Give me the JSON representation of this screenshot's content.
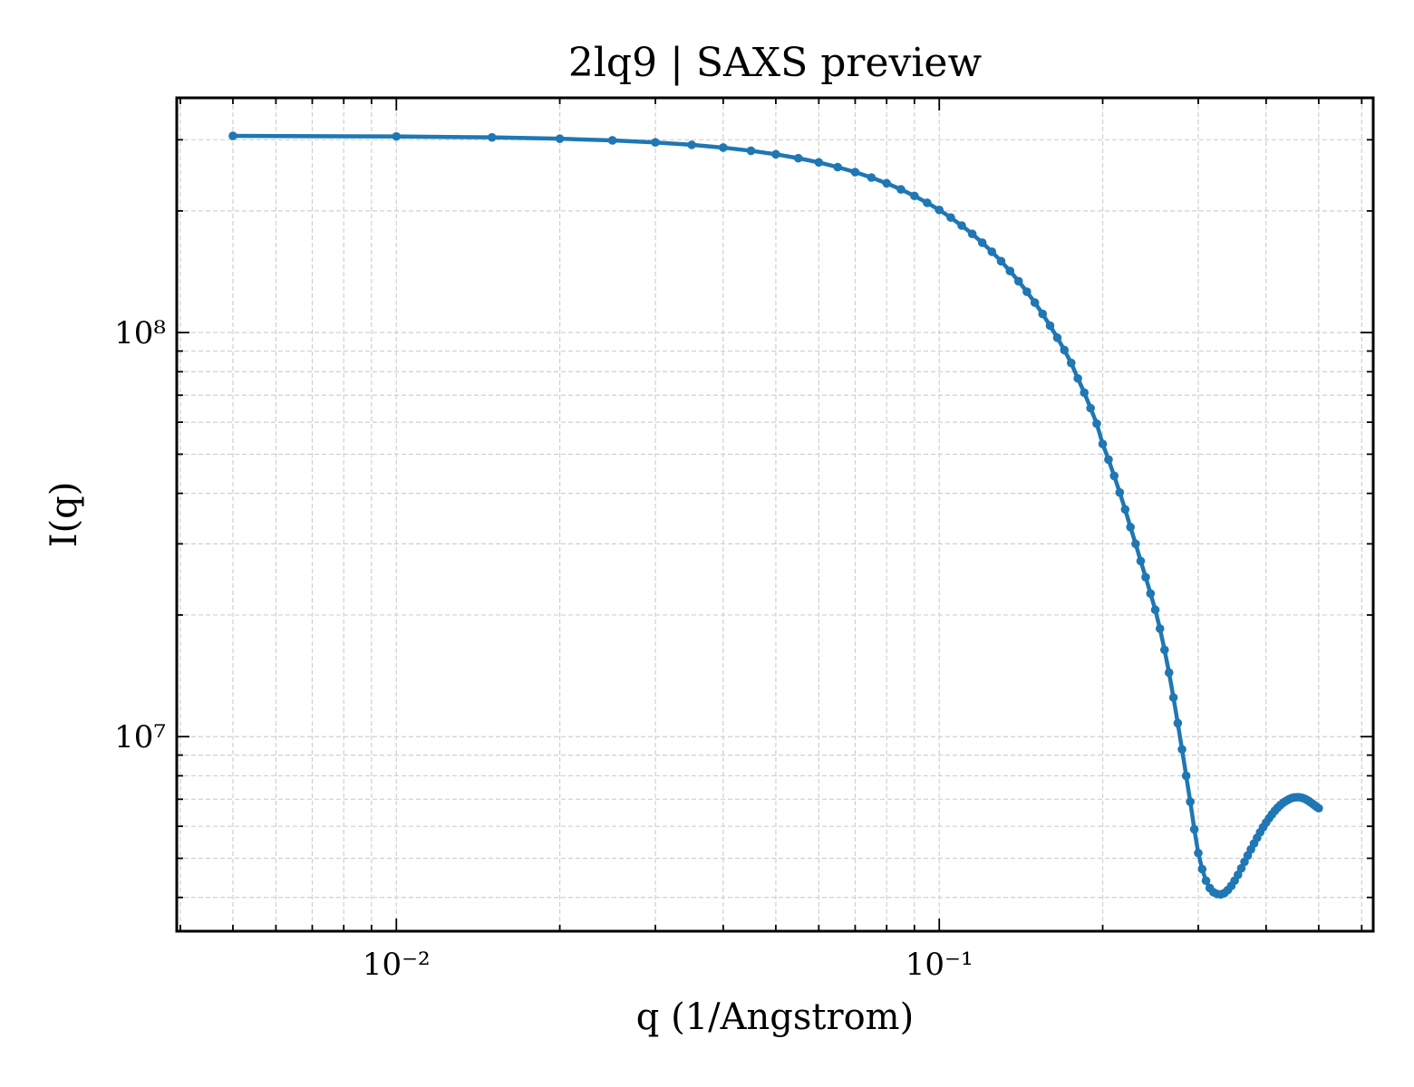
{
  "chart_data": {
    "type": "line",
    "title": "2lq9 | SAXS preview",
    "xlabel": "q (1/Angstrom)",
    "ylabel": "I(q)",
    "xscale": "log",
    "yscale": "log",
    "grid": true,
    "xlim": [
      0.00394,
      0.63
    ],
    "ylim": [
      3300000,
      381000000
    ],
    "xticks": [
      {
        "value": 0.01,
        "label": "10⁻²"
      },
      {
        "value": 0.1,
        "label": "10⁻¹"
      }
    ],
    "yticks": [
      {
        "value": 10000000,
        "label": "10⁷"
      },
      {
        "value": 100000000,
        "label": "10⁸"
      }
    ],
    "xticks_minor": [
      0.004,
      0.005,
      0.006,
      0.007,
      0.008,
      0.009,
      0.02,
      0.03,
      0.04,
      0.05,
      0.06,
      0.07,
      0.08,
      0.09,
      0.2,
      0.3,
      0.4,
      0.5,
      0.6
    ],
    "yticks_minor": [
      4000000,
      5000000,
      6000000,
      7000000,
      8000000,
      9000000,
      20000000,
      30000000,
      40000000,
      50000000,
      60000000,
      70000000,
      80000000,
      90000000,
      200000000,
      300000000
    ],
    "series": [
      {
        "color": "#1f77b4",
        "x": [
          0.005,
          0.01,
          0.015,
          0.02,
          0.025,
          0.03,
          0.035,
          0.04,
          0.045,
          0.05,
          0.055,
          0.06,
          0.065,
          0.07,
          0.075,
          0.08,
          0.085,
          0.09,
          0.095,
          0.1,
          0.105,
          0.11,
          0.115,
          0.12,
          0.125,
          0.13,
          0.135,
          0.14,
          0.145,
          0.15,
          0.155,
          0.16,
          0.165,
          0.17,
          0.175,
          0.18,
          0.185,
          0.19,
          0.195,
          0.2,
          0.205,
          0.21,
          0.215,
          0.22,
          0.225,
          0.23,
          0.235,
          0.24,
          0.245,
          0.25,
          0.255,
          0.26,
          0.265,
          0.27,
          0.275,
          0.28,
          0.285,
          0.29,
          0.295,
          0.3,
          0.305,
          0.31,
          0.315,
          0.32,
          0.325,
          0.33,
          0.335,
          0.34,
          0.345,
          0.35,
          0.355,
          0.36,
          0.365,
          0.37,
          0.375,
          0.38,
          0.385,
          0.39,
          0.395,
          0.4,
          0.405,
          0.41,
          0.415,
          0.42,
          0.425,
          0.43,
          0.435,
          0.44,
          0.445,
          0.45,
          0.455,
          0.46,
          0.465,
          0.47,
          0.475,
          0.48,
          0.485,
          0.49,
          0.495,
          0.5
        ],
        "values": [
          306700000,
          305700000,
          304100000,
          301800000,
          299000000,
          295500000,
          291500000,
          286900000,
          281800000,
          276200000,
          270100000,
          263700000,
          256700000,
          249500000,
          241900000,
          234100000,
          226100000,
          217900000,
          209500000,
          201100000,
          192600000,
          184000000,
          175500000,
          166900000,
          158500000,
          150200000,
          142000000,
          134000000,
          126200000,
          118600000,
          111200000,
          104000000,
          97100000,
          90500000,
          84100000,
          77000000,
          71000000,
          65000000,
          59500000,
          53000000,
          48500000,
          44200000,
          40200000,
          36500000,
          33000000,
          30000000,
          27200000,
          24800000,
          22600000,
          20600000,
          18500000,
          16400000,
          14400000,
          12500000,
          10800000,
          9300000,
          8000000,
          6900000,
          5900000,
          5150000,
          4700000,
          4400000,
          4220000,
          4120000,
          4080000,
          4070000,
          4100000,
          4170000,
          4270000,
          4400000,
          4550000,
          4720000,
          4900000,
          5080000,
          5260000,
          5440000,
          5620000,
          5800000,
          5970000,
          6130000,
          6280000,
          6420000,
          6550000,
          6670000,
          6770000,
          6860000,
          6930000,
          6990000,
          7040000,
          7070000,
          7080000,
          7080000,
          7060000,
          7030000,
          6980000,
          6920000,
          6850000,
          6780000,
          6710000,
          6650000
        ]
      }
    ]
  }
}
